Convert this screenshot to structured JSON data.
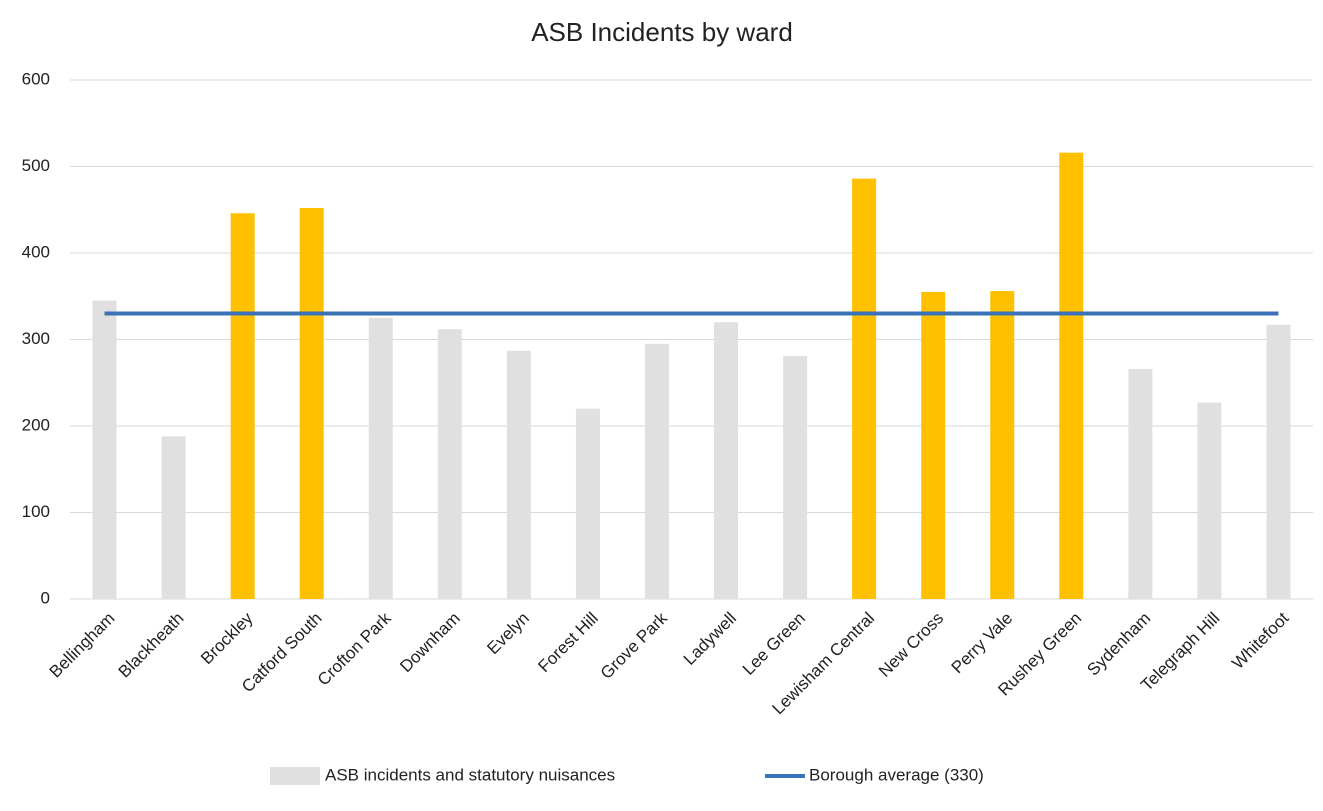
{
  "chart_data": {
    "type": "bar",
    "title": "ASB Incidents by ward",
    "categories": [
      "Bellingham",
      "Blackheath",
      "Brockley",
      "Catford South",
      "Crofton Park",
      "Downham",
      "Evelyn",
      "Forest Hill",
      "Grove Park",
      "Ladywell",
      "Lee Green",
      "Lewisham Central",
      "New Cross",
      "Perry Vale",
      "Rushey Green",
      "Sydenham",
      "Telegraph Hill",
      "Whitefoot"
    ],
    "series": [
      {
        "name": "ASB incidents and statutory nuisances",
        "type": "bar",
        "color": "#e0e0e0",
        "colors": [
          "#e0e0e0",
          "#e0e0e0",
          "#ffc000",
          "#ffc000",
          "#e0e0e0",
          "#e0e0e0",
          "#e0e0e0",
          "#e0e0e0",
          "#e0e0e0",
          "#e0e0e0",
          "#e0e0e0",
          "#ffc000",
          "#ffc000",
          "#ffc000",
          "#ffc000",
          "#e0e0e0",
          "#e0e0e0",
          "#e0e0e0"
        ],
        "values": [
          345,
          188,
          446,
          452,
          325,
          312,
          287,
          220,
          295,
          320,
          281,
          486,
          355,
          356,
          516,
          266,
          227,
          317
        ]
      },
      {
        "name": "Borough average (330)",
        "type": "line",
        "color": "#3a72b8",
        "values": [
          330,
          330,
          330,
          330,
          330,
          330,
          330,
          330,
          330,
          330,
          330,
          330,
          330,
          330,
          330,
          330,
          330,
          330
        ]
      }
    ],
    "ylim": [
      0,
      600
    ],
    "yticks": [
      0,
      100,
      200,
      300,
      400,
      500,
      600
    ],
    "grid": true,
    "legend": "bottom"
  }
}
